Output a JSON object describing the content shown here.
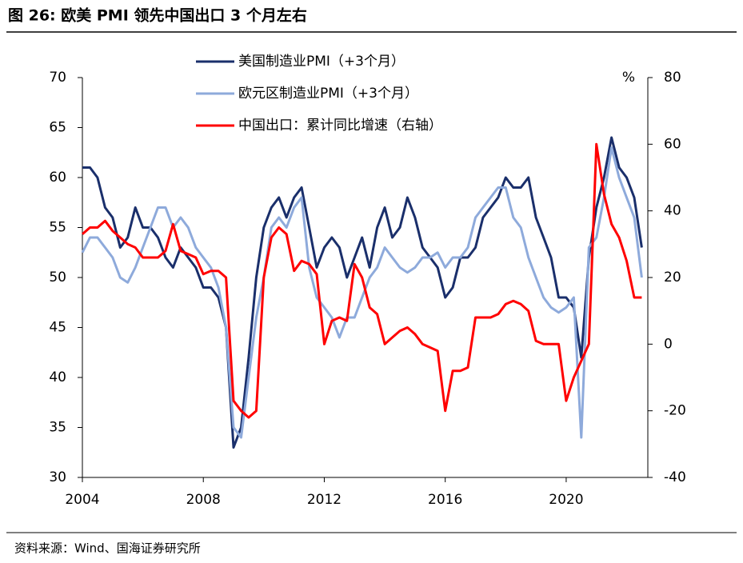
{
  "chart_data": {
    "type": "line",
    "title": "图 26:  欧美 PMI 领先中国出口 3 个月左右",
    "source": "资料来源：Wind、国海证券研究所",
    "y2_label": "%",
    "x": [
      2004,
      2004.25,
      2004.5,
      2004.75,
      2005,
      2005.25,
      2005.5,
      2005.75,
      2006,
      2006.25,
      2006.5,
      2006.75,
      2007,
      2007.25,
      2007.5,
      2007.75,
      2008,
      2008.25,
      2008.5,
      2008.75,
      2009,
      2009.25,
      2009.5,
      2009.75,
      2010,
      2010.25,
      2010.5,
      2010.75,
      2011,
      2011.25,
      2011.5,
      2011.75,
      2012,
      2012.25,
      2012.5,
      2012.75,
      2013,
      2013.25,
      2013.5,
      2013.75,
      2014,
      2014.25,
      2014.5,
      2014.75,
      2015,
      2015.25,
      2015.5,
      2015.75,
      2016,
      2016.25,
      2016.5,
      2016.75,
      2017,
      2017.25,
      2017.5,
      2017.75,
      2018,
      2018.25,
      2018.5,
      2018.75,
      2019,
      2019.25,
      2019.5,
      2019.75,
      2020,
      2020.25,
      2020.5,
      2020.75,
      2021,
      2021.25,
      2021.5,
      2021.75,
      2022,
      2022.25,
      2022.5
    ],
    "xlim": [
      2004,
      2022.7
    ],
    "xticks": [
      2004,
      2008,
      2012,
      2016,
      2020
    ],
    "ylim": [
      30,
      70
    ],
    "yticks": [
      30,
      35,
      40,
      45,
      50,
      55,
      60,
      65,
      70
    ],
    "y2lim": [
      -40,
      80
    ],
    "y2ticks": [
      -40,
      -20,
      0,
      20,
      40,
      60,
      80
    ],
    "legend": "top",
    "series": [
      {
        "name": "美国制造业PMI（+3个月）",
        "color": "#1a2f6b",
        "values": [
          61,
          61,
          60,
          57,
          56,
          53,
          54,
          57,
          55,
          55,
          54,
          52,
          51,
          53,
          52,
          51,
          49,
          49,
          48,
          45,
          33,
          35,
          42,
          50,
          55,
          57,
          58,
          56,
          58,
          59,
          55,
          51,
          53,
          54,
          53,
          50,
          52,
          54,
          51,
          55,
          57,
          54,
          55,
          58,
          56,
          53,
          52,
          51,
          48,
          49,
          52,
          52,
          53,
          56,
          57,
          58,
          60,
          59,
          59,
          60,
          56,
          54,
          52,
          48,
          48,
          47,
          42,
          52,
          57,
          60,
          64,
          61,
          60,
          58,
          53
        ]
      },
      {
        "name": "欧元区制造业PMI（+3个月）",
        "color": "#8eaadb",
        "values": [
          52.5,
          54,
          54,
          53,
          52,
          50,
          49.5,
          51,
          53,
          55,
          57,
          57,
          55,
          56,
          55,
          53,
          52,
          51,
          49,
          45,
          35,
          34,
          40,
          46,
          50,
          55,
          56,
          55,
          57,
          58,
          51,
          48,
          47,
          46,
          44,
          46,
          46,
          48,
          50,
          51,
          53,
          52,
          51,
          50.5,
          51,
          52,
          52,
          52.5,
          51,
          52,
          52,
          53,
          56,
          57,
          58,
          59,
          59,
          56,
          55,
          52,
          50,
          48,
          47,
          46.5,
          47,
          48,
          34,
          53,
          54,
          58,
          63,
          60,
          58,
          56,
          50
        ]
      },
      {
        "name": "中国出口：累计同比增速（右轴）",
        "color": "#ff0000",
        "axis": "y2",
        "values": [
          33,
          35,
          35,
          37,
          34,
          32,
          30,
          29,
          26,
          26,
          26,
          28,
          36,
          28,
          27,
          26,
          21,
          22,
          22,
          20,
          -17,
          -20,
          -22,
          -20,
          20,
          32,
          35,
          33,
          22,
          25,
          24,
          21,
          0,
          7,
          8,
          7,
          24,
          20,
          11,
          9,
          0,
          2,
          4,
          5,
          3,
          0,
          -1,
          -2,
          -20,
          -8,
          -8,
          -7,
          8,
          8,
          8,
          9,
          12,
          13,
          12,
          10,
          1,
          0,
          0,
          0,
          -17,
          -10,
          -5,
          0,
          60,
          45,
          36,
          32,
          25,
          14,
          14
        ]
      }
    ]
  }
}
